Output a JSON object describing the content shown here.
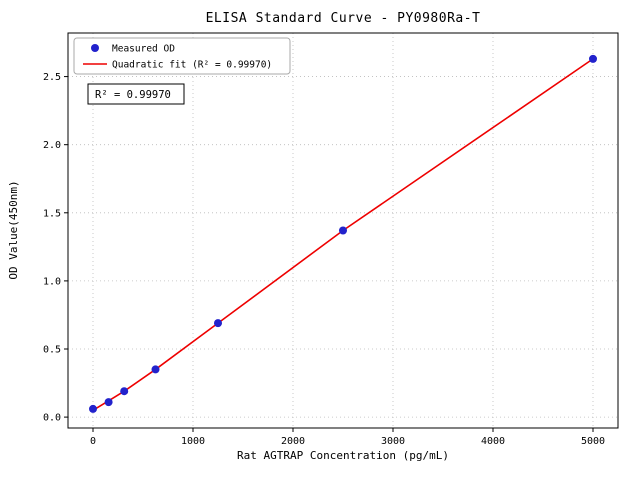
{
  "chart_data": {
    "type": "scatter",
    "title": "ELISA Standard Curve - PY0980Ra-T",
    "xlabel": "Rat AGTRAP Concentration (pg/mL)",
    "ylabel": "OD Value(450nm)",
    "r_squared": "R² = 0.99970",
    "legend_position": "upper left",
    "grid": true,
    "xlim": [
      -250,
      5250
    ],
    "ylim": [
      -0.08,
      2.82
    ],
    "xticks": [
      0,
      1000,
      2000,
      3000,
      4000,
      5000
    ],
    "xtick_labels": [
      "0",
      "1000",
      "2000",
      "3000",
      "4000",
      "5000"
    ],
    "yticks": [
      0,
      0.5,
      1,
      1.5,
      2,
      2.5
    ],
    "ytick_labels": [
      "0.0",
      "0.5",
      "1.0",
      "1.5",
      "2.0",
      "2.5"
    ],
    "series": [
      {
        "name": "Measured OD",
        "kind": "scatter",
        "color": "#2222cc",
        "marker": "circle",
        "x": [
          0,
          156,
          312,
          625,
          1250,
          2500,
          5000
        ],
        "y": [
          0.06,
          0.11,
          0.19,
          0.35,
          0.69,
          1.37,
          2.63
        ]
      },
      {
        "name": "Quadratic fit (R² = 0.99970)",
        "kind": "line",
        "color": "#ee0000",
        "x": [
          0,
          156,
          312,
          625,
          1250,
          2500,
          5000
        ],
        "y": [
          0.05,
          0.12,
          0.19,
          0.35,
          0.69,
          1.37,
          2.63
        ]
      }
    ],
    "colors": {
      "grid": "#bbbbbb",
      "frame": "#000000",
      "background": "#ffffff"
    }
  }
}
